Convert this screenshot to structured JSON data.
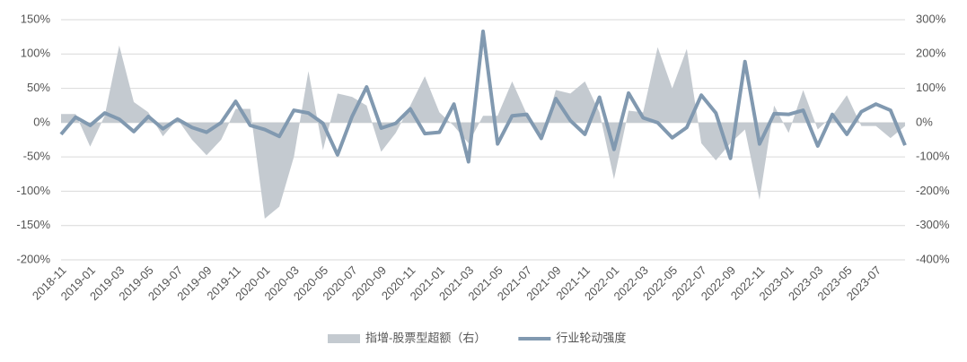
{
  "chart_data": {
    "type": "line",
    "categories": [
      "2018-11",
      null,
      "2019-01",
      null,
      "2019-03",
      null,
      "2019-05",
      null,
      "2019-07",
      null,
      "2019-09",
      null,
      "2019-11",
      null,
      "2020-01",
      null,
      "2020-03",
      null,
      "2020-05",
      null,
      "2020-07",
      null,
      "2020-09",
      null,
      "2020-11",
      null,
      "2021-01",
      null,
      "2021-03",
      null,
      "2021-05",
      null,
      "2021-07",
      null,
      "2021-09",
      null,
      "2021-11",
      null,
      "2022-01",
      null,
      "2022-03",
      null,
      "2022-05",
      null,
      "2022-07",
      null,
      "2022-09",
      null,
      "2022-11",
      null,
      "2023-01",
      null,
      "2023-03",
      null,
      "2023-05",
      null,
      "2023-07",
      null,
      null
    ],
    "series": [
      {
        "name": "指增-股票型超额（右）",
        "type": "area",
        "axis": "y2",
        "color": "#c4cad0",
        "values": [
          25,
          25,
          -70,
          20,
          225,
          60,
          30,
          -40,
          10,
          -50,
          -95,
          -50,
          40,
          40,
          -280,
          -245,
          -100,
          150,
          -80,
          85,
          75,
          50,
          -85,
          -30,
          50,
          135,
          30,
          -10,
          -60,
          20,
          20,
          120,
          25,
          -50,
          95,
          85,
          120,
          30,
          -165,
          35,
          30,
          220,
          100,
          215,
          -60,
          -110,
          -60,
          -20,
          -225,
          50,
          -30,
          95,
          -20,
          20,
          80,
          -10,
          -10,
          -45,
          -10
        ]
      },
      {
        "name": "行业轮动强度",
        "type": "line",
        "color": "#8199b0",
        "values": [
          -17,
          8,
          -4,
          14,
          5,
          -13,
          9,
          -9,
          5,
          -7,
          -14,
          0,
          31,
          -4,
          -10,
          -20,
          18,
          14,
          -1,
          -47,
          9,
          52,
          -8,
          -1,
          20,
          -16,
          -14,
          27,
          -57,
          133,
          -31,
          10,
          12,
          -23,
          35,
          3,
          -17,
          37,
          -39,
          43,
          7,
          0,
          -22,
          -7,
          40,
          14,
          -52,
          89,
          -31,
          13,
          12,
          18,
          -34,
          12,
          -17,
          16,
          27,
          18,
          -33
        ]
      }
    ],
    "ylim": [
      -200,
      150
    ],
    "yticks": [
      {
        "value": -200,
        "label": "-200%"
      },
      {
        "value": -150,
        "label": "-150%"
      },
      {
        "value": -100,
        "label": "-100%"
      },
      {
        "value": -50,
        "label": "-50%"
      },
      {
        "value": 0,
        "label": "0%"
      },
      {
        "value": 50,
        "label": "50%"
      },
      {
        "value": 100,
        "label": "100%"
      },
      {
        "value": 150,
        "label": "150%"
      }
    ],
    "y2lim": [
      -400,
      300
    ],
    "y2ticks": [
      {
        "value": -400,
        "label": "-400%"
      },
      {
        "value": -300,
        "label": "-300%"
      },
      {
        "value": -200,
        "label": "-200%"
      },
      {
        "value": -100,
        "label": "-100%"
      },
      {
        "value": 0,
        "label": "0%"
      },
      {
        "value": 100,
        "label": "100%"
      },
      {
        "value": 200,
        "label": "200%"
      },
      {
        "value": 300,
        "label": "300%"
      }
    ],
    "grid": true,
    "legend": "bottom"
  }
}
